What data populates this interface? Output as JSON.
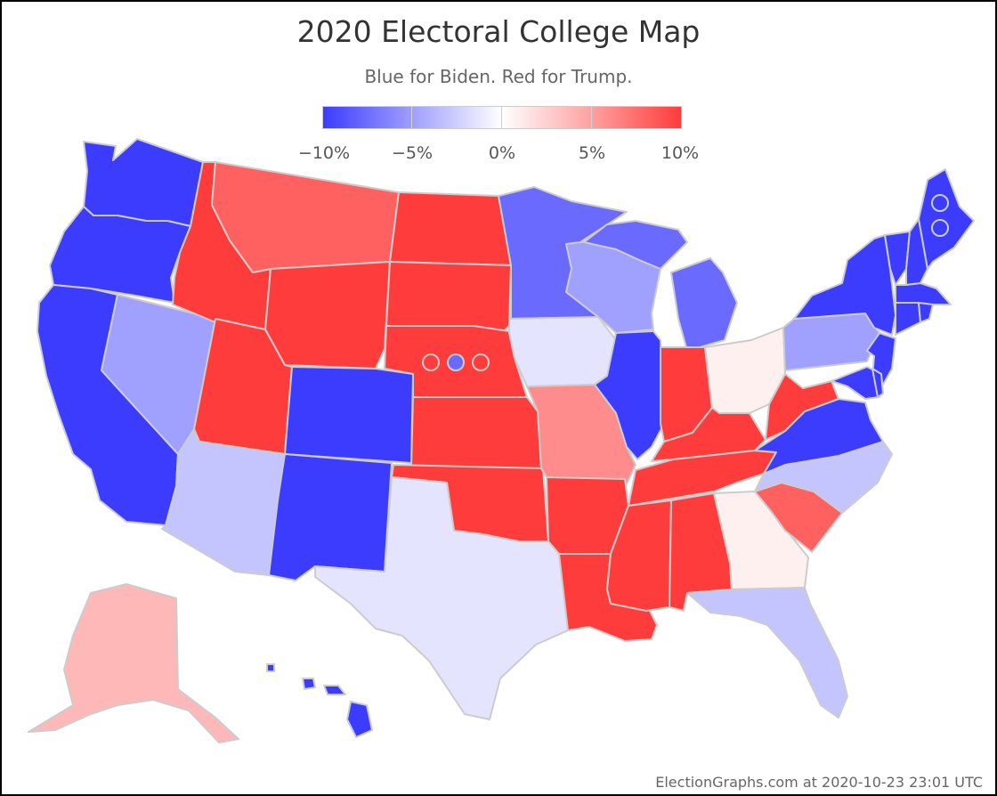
{
  "title": "2020 Electoral College Map",
  "subtitle": "Blue for Biden. Red for Trump.",
  "legend": {
    "labels": [
      "−10%",
      "−5%",
      "0%",
      "5%",
      "10%"
    ],
    "colors": [
      "#3c3cff",
      "#9f9fff",
      "#ffffff",
      "#ffa0a0",
      "#ff3c3c"
    ]
  },
  "footer": "ElectionGraphs.com at 2020-10-23 23:01 UTC",
  "colors": {
    "solid_biden": "#3c3cff",
    "biden_medium": "#6a6aff",
    "biden_lean": "#a0a0ff",
    "biden_weak": "#c4c4ff",
    "biden_tossup": "#e4e4ff",
    "solid_trump": "#ff3c3c",
    "trump_medium": "#ff6060",
    "trump_lean": "#ff8c8c",
    "trump_weak": "#ffb8b8",
    "trump_tossup": "#fff0f0",
    "border": "#cccccc"
  },
  "states": [
    {
      "id": "WA",
      "margin": "solid_biden"
    },
    {
      "id": "OR",
      "margin": "solid_biden"
    },
    {
      "id": "CA",
      "margin": "solid_biden"
    },
    {
      "id": "NV",
      "margin": "biden_lean"
    },
    {
      "id": "ID",
      "margin": "solid_trump"
    },
    {
      "id": "MT",
      "margin": "trump_medium"
    },
    {
      "id": "WY",
      "margin": "solid_trump"
    },
    {
      "id": "UT",
      "margin": "solid_trump"
    },
    {
      "id": "AZ",
      "margin": "biden_weak"
    },
    {
      "id": "CO",
      "margin": "solid_biden"
    },
    {
      "id": "NM",
      "margin": "solid_biden"
    },
    {
      "id": "ND",
      "margin": "solid_trump"
    },
    {
      "id": "SD",
      "margin": "solid_trump"
    },
    {
      "id": "NE",
      "margin": "solid_trump"
    },
    {
      "id": "KS",
      "margin": "solid_trump"
    },
    {
      "id": "OK",
      "margin": "solid_trump"
    },
    {
      "id": "TX",
      "margin": "biden_tossup"
    },
    {
      "id": "MN",
      "margin": "biden_medium"
    },
    {
      "id": "IA",
      "margin": "biden_tossup"
    },
    {
      "id": "MO",
      "margin": "trump_lean"
    },
    {
      "id": "AR",
      "margin": "solid_trump"
    },
    {
      "id": "LA",
      "margin": "solid_trump"
    },
    {
      "id": "WI",
      "margin": "biden_lean"
    },
    {
      "id": "IL",
      "margin": "solid_biden"
    },
    {
      "id": "MI",
      "margin": "biden_medium"
    },
    {
      "id": "IN",
      "margin": "solid_trump"
    },
    {
      "id": "OH",
      "margin": "trump_tossup"
    },
    {
      "id": "KY",
      "margin": "solid_trump"
    },
    {
      "id": "TN",
      "margin": "solid_trump"
    },
    {
      "id": "MS",
      "margin": "solid_trump"
    },
    {
      "id": "AL",
      "margin": "solid_trump"
    },
    {
      "id": "GA",
      "margin": "trump_tossup"
    },
    {
      "id": "FL",
      "margin": "biden_weak"
    },
    {
      "id": "SC",
      "margin": "trump_medium"
    },
    {
      "id": "NC",
      "margin": "biden_weak"
    },
    {
      "id": "VA",
      "margin": "solid_biden"
    },
    {
      "id": "WV",
      "margin": "solid_trump"
    },
    {
      "id": "PA",
      "margin": "biden_lean"
    },
    {
      "id": "NY",
      "margin": "solid_biden"
    },
    {
      "id": "NJ",
      "margin": "solid_biden"
    },
    {
      "id": "MD",
      "margin": "solid_biden"
    },
    {
      "id": "DE",
      "margin": "solid_biden"
    },
    {
      "id": "VT",
      "margin": "solid_biden"
    },
    {
      "id": "NH",
      "margin": "solid_biden"
    },
    {
      "id": "ME",
      "margin": "solid_biden"
    },
    {
      "id": "MA",
      "margin": "solid_biden"
    },
    {
      "id": "CT",
      "margin": "solid_biden"
    },
    {
      "id": "RI",
      "margin": "solid_biden"
    },
    {
      "id": "AK",
      "margin": "trump_weak"
    },
    {
      "id": "HI",
      "margin": "solid_biden"
    }
  ],
  "districts": [
    {
      "id": "NE-1",
      "margin": "solid_trump"
    },
    {
      "id": "NE-2",
      "margin": "biden_medium"
    },
    {
      "id": "NE-3",
      "margin": "solid_trump"
    },
    {
      "id": "ME-1",
      "margin": "solid_biden"
    },
    {
      "id": "ME-2",
      "margin": "solid_biden"
    }
  ]
}
